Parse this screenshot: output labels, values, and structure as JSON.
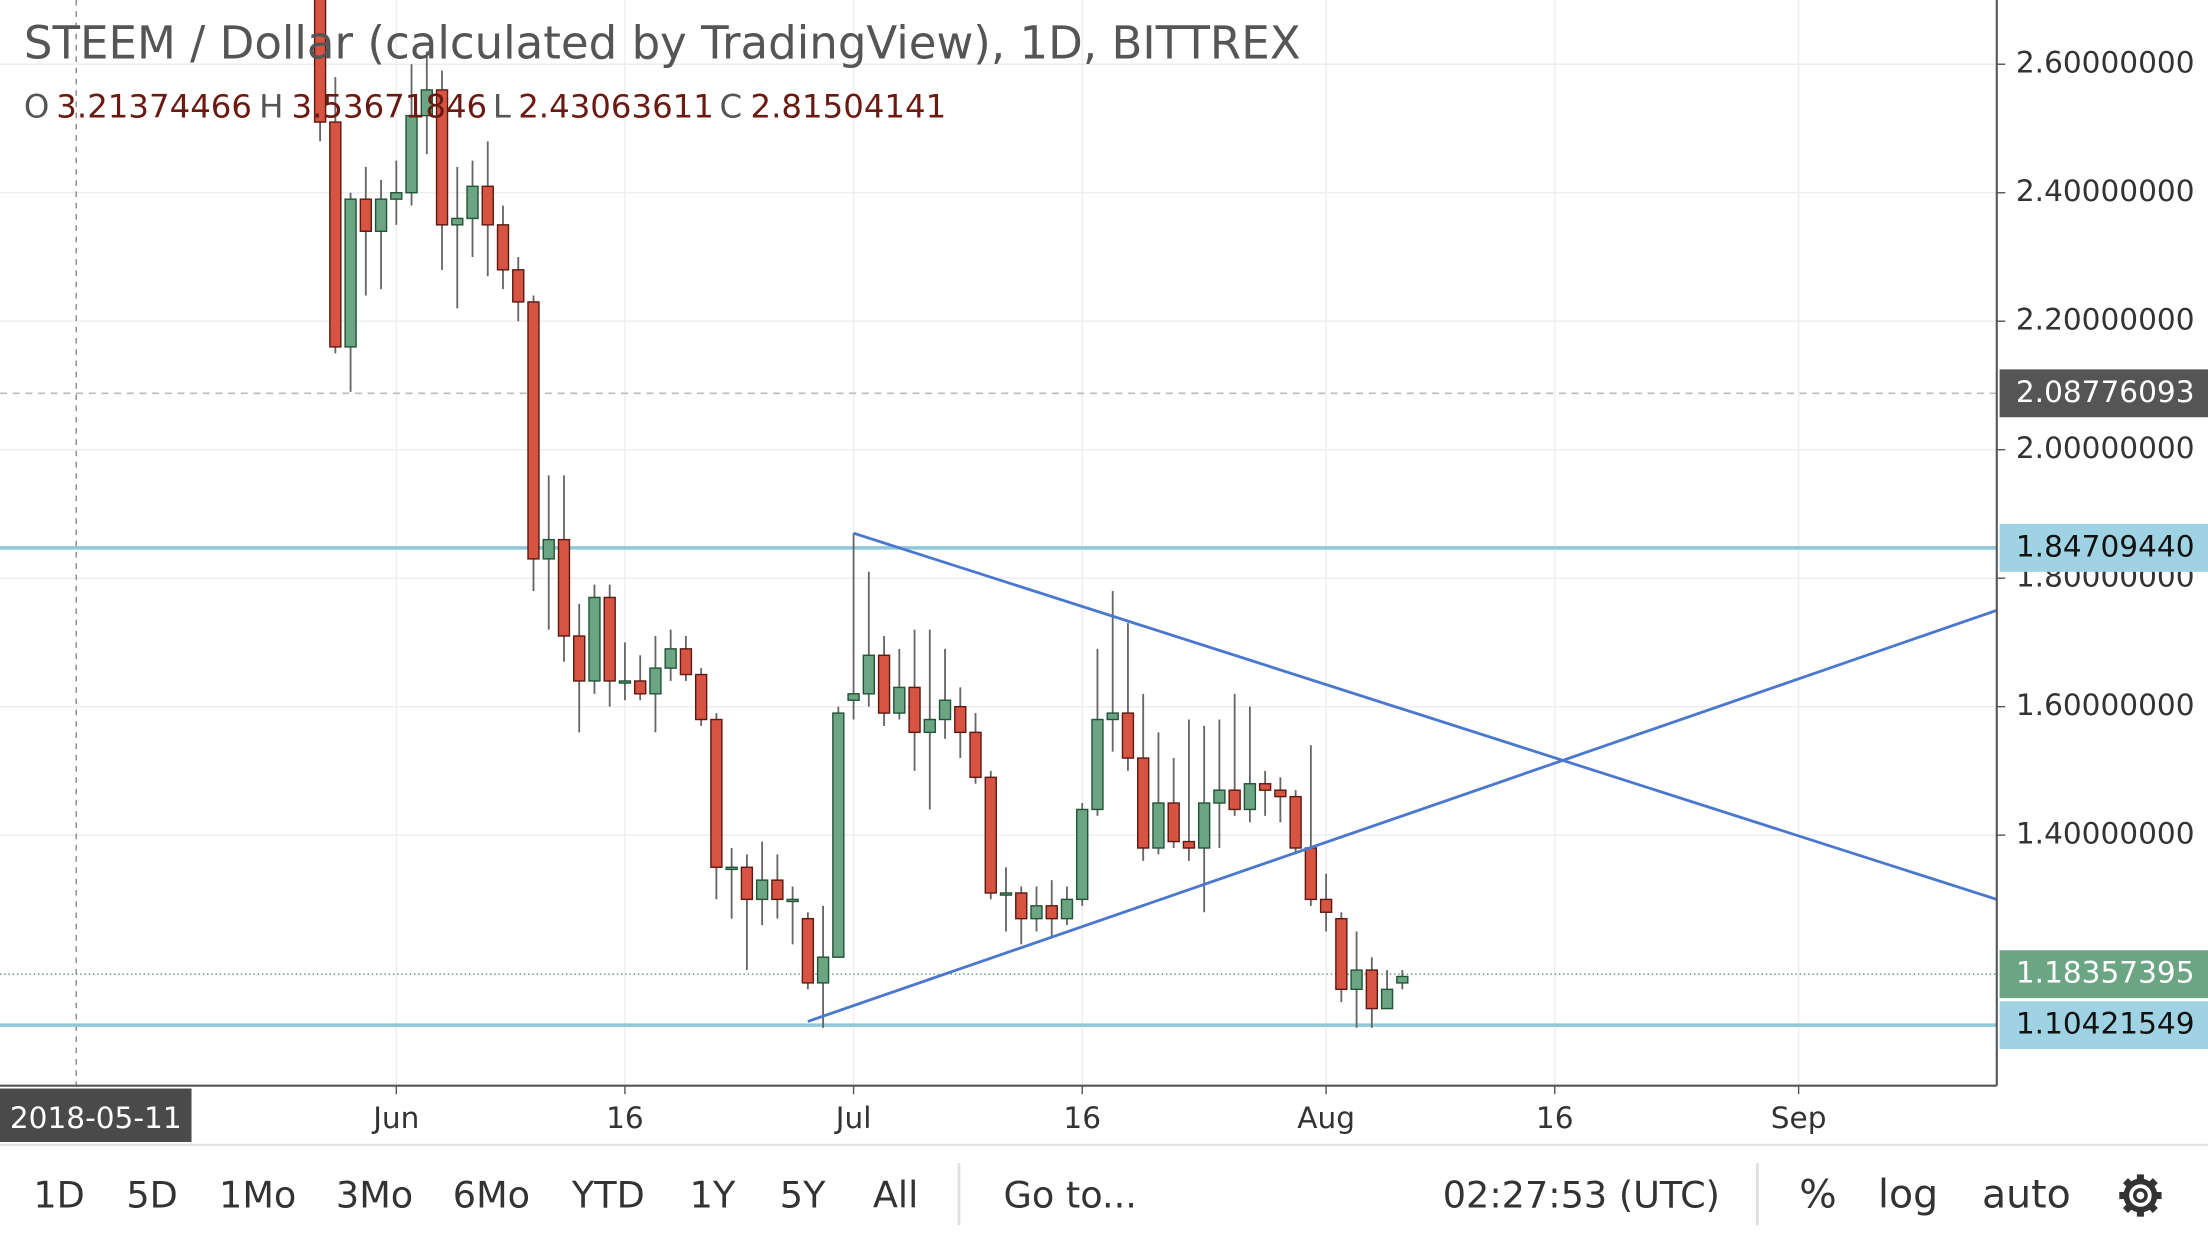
{
  "chart_data": {
    "type": "candlestick",
    "title": "STEEM / Dollar (calculated by TradingView), 1D, BITTREX",
    "ohlc_legend": [
      {
        "key": "O",
        "value": "3.21374466"
      },
      {
        "key": "H",
        "value": "3.53671846"
      },
      {
        "key": "L",
        "value": "2.43063611"
      },
      {
        "key": "C",
        "value": "2.81504141"
      }
    ],
    "up_color": "#6ba583",
    "down_color": "#d75442",
    "up_border": "#225437",
    "down_border": "#5b1a13",
    "x": [
      "2018-05-27",
      "2018-05-28",
      "2018-05-29",
      "2018-05-30",
      "2018-05-31",
      "2018-06-01",
      "2018-06-02",
      "2018-06-03",
      "2018-06-04",
      "2018-06-05",
      "2018-06-06",
      "2018-06-07",
      "2018-06-08",
      "2018-06-09",
      "2018-06-10",
      "2018-06-11",
      "2018-06-12",
      "2018-06-13",
      "2018-06-14",
      "2018-06-15",
      "2018-06-16",
      "2018-06-17",
      "2018-06-18",
      "2018-06-19",
      "2018-06-20",
      "2018-06-21",
      "2018-06-22",
      "2018-06-23",
      "2018-06-24",
      "2018-06-25",
      "2018-06-26",
      "2018-06-27",
      "2018-06-28",
      "2018-06-29",
      "2018-06-30",
      "2018-07-01",
      "2018-07-02",
      "2018-07-03",
      "2018-07-04",
      "2018-07-05",
      "2018-07-06",
      "2018-07-07",
      "2018-07-08",
      "2018-07-09",
      "2018-07-10",
      "2018-07-11",
      "2018-07-12",
      "2018-07-13",
      "2018-07-14",
      "2018-07-15",
      "2018-07-16",
      "2018-07-17",
      "2018-07-18",
      "2018-07-19",
      "2018-07-20",
      "2018-07-21",
      "2018-07-22",
      "2018-07-23",
      "2018-07-24",
      "2018-07-25",
      "2018-07-26",
      "2018-07-27",
      "2018-07-28",
      "2018-07-29",
      "2018-07-30",
      "2018-07-31",
      "2018-08-01",
      "2018-08-02",
      "2018-08-03",
      "2018-08-04",
      "2018-08-05",
      "2018-08-06"
    ],
    "open": [
      2.72,
      2.51,
      2.16,
      2.39,
      2.34,
      2.39,
      2.4,
      2.52,
      2.56,
      2.35,
      2.36,
      2.41,
      2.35,
      2.28,
      2.23,
      1.83,
      1.86,
      1.71,
      1.64,
      1.77,
      1.64,
      1.64,
      1.62,
      1.66,
      1.69,
      1.65,
      1.58,
      1.35,
      1.35,
      1.3,
      1.33,
      1.3,
      1.27,
      1.17,
      1.21,
      1.61,
      1.62,
      1.68,
      1.59,
      1.63,
      1.56,
      1.58,
      1.6,
      1.56,
      1.49,
      1.31,
      1.31,
      1.27,
      1.29,
      1.27,
      1.3,
      1.44,
      1.58,
      1.59,
      1.52,
      1.38,
      1.45,
      1.39,
      1.38,
      1.45,
      1.47,
      1.44,
      1.48,
      1.47,
      1.46,
      1.38,
      1.3,
      1.27,
      1.16,
      1.19,
      1.13,
      1.17
    ],
    "high": [
      2.78,
      2.58,
      2.4,
      2.44,
      2.42,
      2.45,
      2.6,
      2.62,
      2.59,
      2.44,
      2.45,
      2.48,
      2.38,
      2.3,
      2.24,
      1.96,
      1.96,
      1.76,
      1.79,
      1.79,
      1.7,
      1.68,
      1.71,
      1.72,
      1.71,
      1.66,
      1.59,
      1.38,
      1.37,
      1.39,
      1.37,
      1.32,
      1.28,
      1.29,
      1.6,
      1.87,
      1.81,
      1.71,
      1.69,
      1.72,
      1.72,
      1.69,
      1.63,
      1.59,
      1.5,
      1.35,
      1.32,
      1.32,
      1.33,
      1.32,
      1.45,
      1.69,
      1.78,
      1.73,
      1.62,
      1.56,
      1.52,
      1.58,
      1.57,
      1.58,
      1.62,
      1.6,
      1.5,
      1.49,
      1.47,
      1.54,
      1.34,
      1.28,
      1.25,
      1.21,
      1.19,
      1.19
    ],
    "low": [
      2.48,
      2.15,
      2.09,
      2.24,
      2.25,
      2.35,
      2.38,
      2.46,
      2.28,
      2.22,
      2.3,
      2.27,
      2.25,
      2.2,
      1.78,
      1.72,
      1.67,
      1.56,
      1.62,
      1.6,
      1.61,
      1.61,
      1.56,
      1.64,
      1.64,
      1.57,
      1.3,
      1.27,
      1.19,
      1.26,
      1.27,
      1.23,
      1.16,
      1.1,
      1.21,
      1.58,
      1.6,
      1.57,
      1.58,
      1.5,
      1.44,
      1.55,
      1.52,
      1.48,
      1.3,
      1.25,
      1.23,
      1.25,
      1.24,
      1.26,
      1.29,
      1.43,
      1.53,
      1.5,
      1.36,
      1.37,
      1.38,
      1.36,
      1.28,
      1.38,
      1.43,
      1.42,
      1.43,
      1.42,
      1.37,
      1.29,
      1.25,
      1.14,
      1.1,
      1.1,
      1.13,
      1.16
    ],
    "close": [
      2.51,
      2.16,
      2.39,
      2.34,
      2.39,
      2.4,
      2.52,
      2.56,
      2.35,
      2.36,
      2.41,
      2.35,
      2.28,
      2.23,
      1.83,
      1.86,
      1.71,
      1.64,
      1.77,
      1.64,
      1.64,
      1.62,
      1.66,
      1.69,
      1.65,
      1.58,
      1.35,
      1.35,
      1.3,
      1.33,
      1.3,
      1.3,
      1.17,
      1.21,
      1.59,
      1.62,
      1.68,
      1.59,
      1.63,
      1.56,
      1.58,
      1.61,
      1.56,
      1.49,
      1.31,
      1.31,
      1.27,
      1.29,
      1.27,
      1.3,
      1.44,
      1.58,
      1.59,
      1.52,
      1.38,
      1.45,
      1.39,
      1.38,
      1.45,
      1.47,
      1.44,
      1.48,
      1.47,
      1.46,
      1.38,
      1.3,
      1.28,
      1.16,
      1.19,
      1.13,
      1.16,
      1.18
    ],
    "xlim": [
      "2018-05-06",
      "2018-09-14"
    ],
    "xticks": [
      {
        "value": "2018-06-01",
        "label": "Jun"
      },
      {
        "value": "2018-06-16",
        "label": "16"
      },
      {
        "value": "2018-07-01",
        "label": "Jul"
      },
      {
        "value": "2018-07-16",
        "label": "16"
      },
      {
        "value": "2018-08-01",
        "label": "Aug"
      },
      {
        "value": "2018-08-16",
        "label": "16"
      },
      {
        "value": "2018-09-01",
        "label": "Sep"
      }
    ],
    "ylim": [
      1.01,
      2.7
    ],
    "yticks": [
      {
        "value": 1.4,
        "label": "1.40000000"
      },
      {
        "value": 1.6,
        "label": "1.60000000"
      },
      {
        "value": 1.8,
        "label": "1.80000000"
      },
      {
        "value": 2.0,
        "label": "2.00000000"
      },
      {
        "value": 2.2,
        "label": "2.20000000"
      },
      {
        "value": 2.4,
        "label": "2.40000000"
      },
      {
        "value": 2.6,
        "label": "2.60000000"
      }
    ],
    "grid": true,
    "price_labels": [
      {
        "value": 2.08776093,
        "label": "2.08776093",
        "color": "#555555",
        "text_color": "#ffffff",
        "line": "dashed",
        "line_color": "#bbbbbb"
      },
      {
        "value": 1.8470944,
        "label": "1.84709440",
        "color": "#9fd3e3",
        "text_color": "#111111",
        "line": "solid",
        "line_color": "#8ec8da"
      },
      {
        "value": 1.18357395,
        "label": "1.18357395",
        "color": "#6ba583",
        "text_color": "#ffffff",
        "line": "dotted",
        "line_color": "#6ba583"
      },
      {
        "value": 1.10421549,
        "label": "1.10421549",
        "color": "#9fd3e3",
        "text_color": "#111111",
        "line": "solid",
        "line_color": "#8ec8da"
      }
    ],
    "trendlines": [
      {
        "x": [
          "2018-07-01",
          "2018-09-14"
        ],
        "values": [
          1.87,
          1.3
        ],
        "color": "#4a78cf"
      },
      {
        "x": [
          "2018-06-28",
          "2018-09-14"
        ],
        "values": [
          1.11,
          1.75
        ],
        "color": "#4a78cf"
      }
    ],
    "crosshair_x": "2018-05-11"
  },
  "toolbar": {
    "ranges": [
      "1D",
      "5D",
      "1Mo",
      "3Mo",
      "6Mo",
      "YTD",
      "1Y",
      "5Y",
      "All"
    ],
    "goto": "Go to...",
    "clock": "02:27:53 (UTC)",
    "options": [
      "%",
      "log",
      "auto"
    ]
  }
}
